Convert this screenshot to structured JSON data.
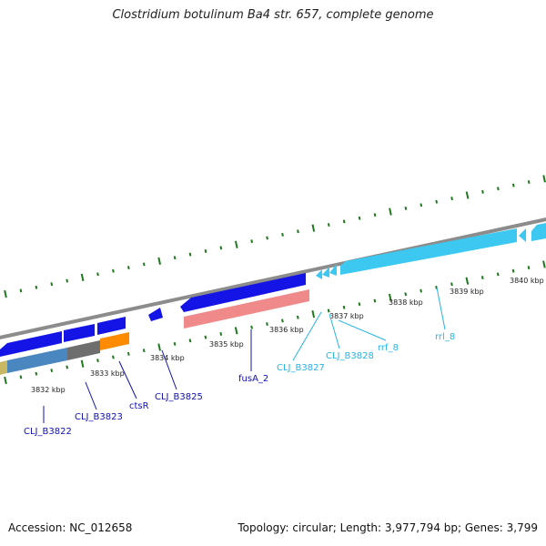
{
  "title": "Clostridium botulinum Ba4 str. 657, complete genome",
  "footer": {
    "accession": "Accession: NC_012658",
    "topology": "Topology: circular; Length: 3,977,794 bp; Genes: 3,799"
  },
  "colors": {
    "backbone": "#8c8c8c",
    "tick": "#1f7a1f",
    "cds_blue": "#1414e6",
    "rna_cyan": "#3cc8f0",
    "label_blue": "#1010b0",
    "label_cyan": "#28b4e6",
    "salmon": "#f08a8a",
    "steel": "#4a86c0",
    "gray": "#6e6e6e",
    "orange": "#ff8c00",
    "khaki": "#c8b864"
  },
  "ticks": [
    "3832 kbp",
    "3833 kbp",
    "3834 kbp",
    "3835 kbp",
    "3836 kbp",
    "3837 kbp",
    "3838 kbp",
    "3839 kbp",
    "3840 kbp"
  ],
  "gene_labels": [
    {
      "id": "clj-b3822",
      "text": "CLJ_B3822",
      "kind": "cds"
    },
    {
      "id": "clj-b3823",
      "text": "CLJ_B3823",
      "kind": "cds"
    },
    {
      "id": "ctsr",
      "text": "ctsR",
      "kind": "cds"
    },
    {
      "id": "clj-b3825",
      "text": "CLJ_B3825",
      "kind": "cds"
    },
    {
      "id": "fusa-2",
      "text": "fusA_2",
      "kind": "cds"
    },
    {
      "id": "clj-b3827",
      "text": "CLJ_B3827",
      "kind": "rna"
    },
    {
      "id": "clj-b3828",
      "text": "CLJ_B3828",
      "kind": "rna"
    },
    {
      "id": "rrf-8",
      "text": "rrf_8",
      "kind": "rna"
    },
    {
      "id": "rrl-8",
      "text": "rrl_8",
      "kind": "rna"
    }
  ]
}
